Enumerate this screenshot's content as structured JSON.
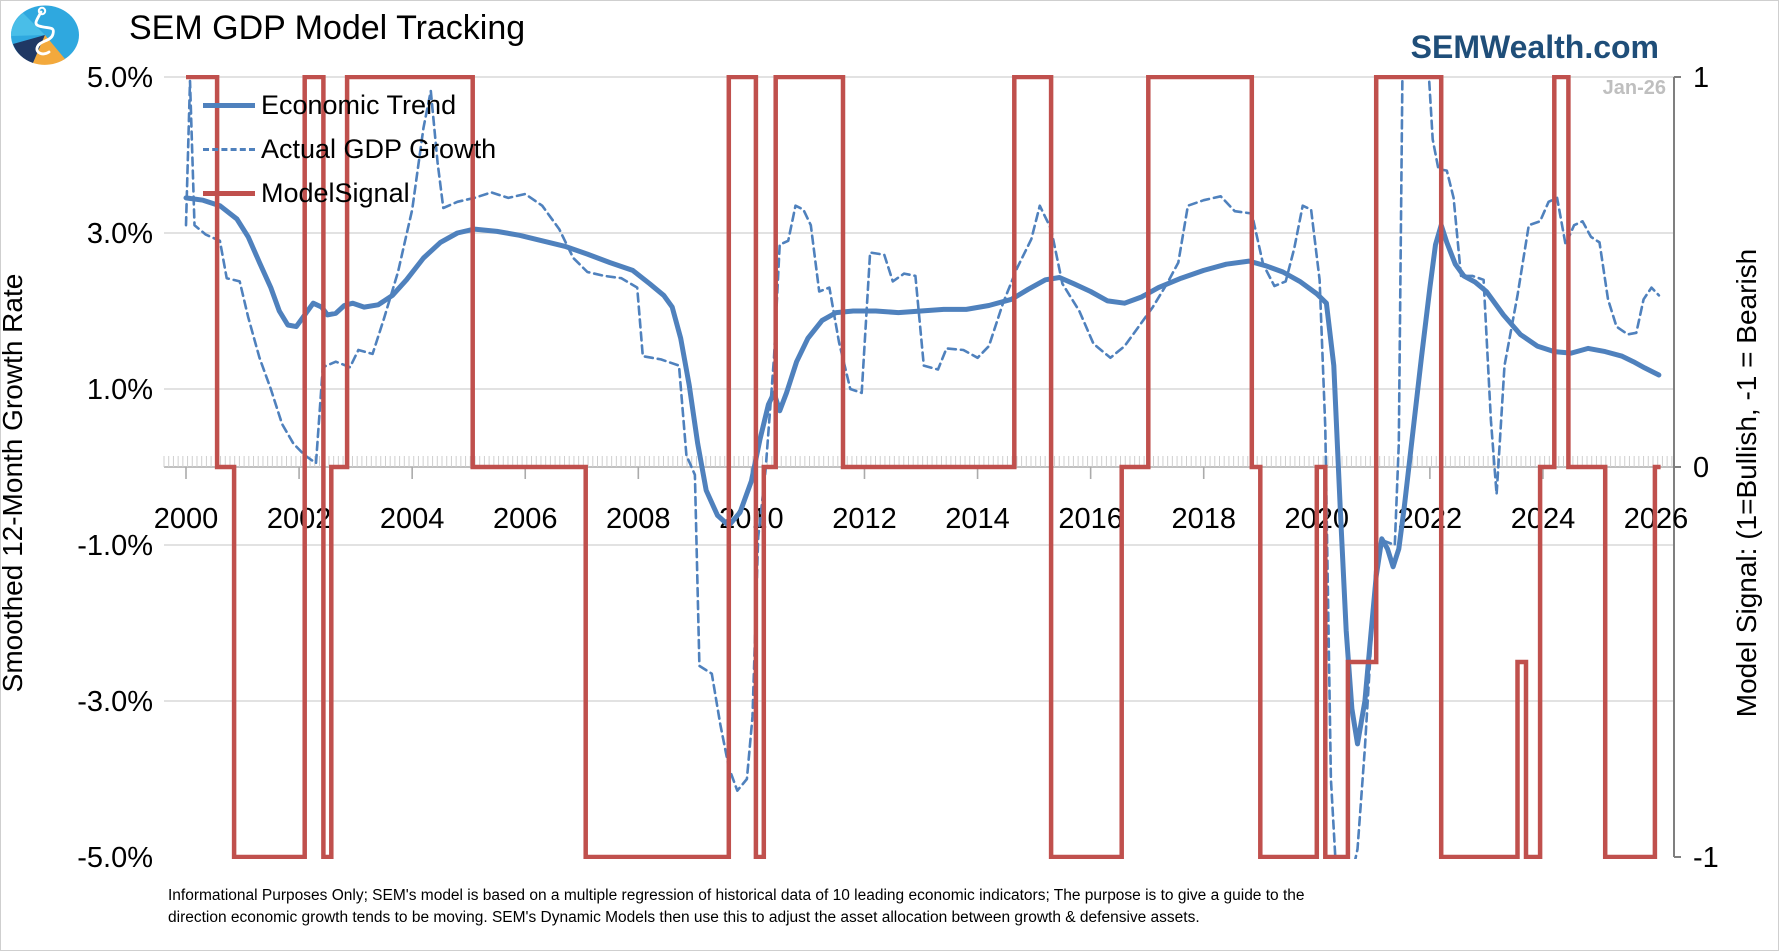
{
  "header": {
    "title": "SEM GDP Model Tracking",
    "website": "SEMWealth.com",
    "website_color": "#1F4E79",
    "logo_icon": "sem-pie-logo"
  },
  "watermark": "Jan-26",
  "footer": {
    "line1": "Informational Purposes Only; SEM's model is based on a multiple regression of historical data of 10 leading economic indicators; The purpose is to give a guide to the",
    "line2": "direction economic growth tends to be moving. SEM's Dynamic Models then use this to adjust the asset allocation between growth & defensive assets."
  },
  "chart_data": {
    "type": "line",
    "title": "SEM GDP Model Tracking",
    "grid_color": "#D9D9D9",
    "axis_color": "#ABABAB",
    "right_axis_color": "#7F7F7F",
    "legend_position": "top-left",
    "x_axis": {
      "start_year": 2000,
      "end_year": 2026.1,
      "label_years": [
        2000,
        2002,
        2004,
        2006,
        2008,
        2010,
        2012,
        2014,
        2016,
        2018,
        2020,
        2022,
        2024,
        2026
      ],
      "last_point_label": "Jan-26"
    },
    "y_left": {
      "title": "Smoothed 12-Month Growth Rate",
      "tick_labels": [
        "5.0%",
        "3.0%",
        "1.0%",
        "-1.0%",
        "-3.0%",
        "-5.0%"
      ],
      "tick_values": [
        5,
        3,
        1,
        -1,
        -3,
        -5
      ],
      "gridlines": [
        3,
        1,
        -1,
        -3
      ],
      "range": [
        -5,
        5
      ]
    },
    "y_right": {
      "title": "Model Signal: (1=Bullish, -1 = Bearish",
      "tick_labels": [
        "1",
        "0",
        "-1"
      ],
      "tick_values": [
        1,
        0,
        -1
      ],
      "range": [
        -1,
        1
      ]
    },
    "series": [
      {
        "name": "Economic Trend",
        "style": "solid",
        "color": "#4F81BD",
        "width": 5,
        "axis": "left",
        "points": [
          [
            2000.0,
            3.45
          ],
          [
            2000.3,
            3.42
          ],
          [
            2000.6,
            3.35
          ],
          [
            2000.9,
            3.18
          ],
          [
            2001.1,
            2.95
          ],
          [
            2001.3,
            2.62
          ],
          [
            2001.5,
            2.3
          ],
          [
            2001.65,
            2.0
          ],
          [
            2001.8,
            1.82
          ],
          [
            2001.95,
            1.8
          ],
          [
            2002.1,
            1.95
          ],
          [
            2002.25,
            2.1
          ],
          [
            2002.4,
            2.05
          ],
          [
            2002.5,
            1.95
          ],
          [
            2002.65,
            1.97
          ],
          [
            2002.8,
            2.07
          ],
          [
            2002.95,
            2.1
          ],
          [
            2003.15,
            2.05
          ],
          [
            2003.4,
            2.08
          ],
          [
            2003.65,
            2.2
          ],
          [
            2003.9,
            2.4
          ],
          [
            2004.2,
            2.68
          ],
          [
            2004.5,
            2.88
          ],
          [
            2004.8,
            3.0
          ],
          [
            2005.1,
            3.05
          ],
          [
            2005.5,
            3.02
          ],
          [
            2005.9,
            2.97
          ],
          [
            2006.3,
            2.9
          ],
          [
            2006.7,
            2.83
          ],
          [
            2007.1,
            2.73
          ],
          [
            2007.5,
            2.62
          ],
          [
            2007.9,
            2.52
          ],
          [
            2008.2,
            2.35
          ],
          [
            2008.45,
            2.2
          ],
          [
            2008.6,
            2.05
          ],
          [
            2008.75,
            1.65
          ],
          [
            2008.9,
            1.05
          ],
          [
            2009.05,
            0.3
          ],
          [
            2009.2,
            -0.3
          ],
          [
            2009.4,
            -0.62
          ],
          [
            2009.6,
            -0.75
          ],
          [
            2009.8,
            -0.58
          ],
          [
            2010.0,
            -0.18
          ],
          [
            2010.15,
            0.35
          ],
          [
            2010.3,
            0.8
          ],
          [
            2010.4,
            0.95
          ],
          [
            2010.5,
            0.72
          ],
          [
            2010.62,
            0.95
          ],
          [
            2010.8,
            1.35
          ],
          [
            2011.0,
            1.65
          ],
          [
            2011.25,
            1.88
          ],
          [
            2011.5,
            1.98
          ],
          [
            2011.8,
            2.0
          ],
          [
            2012.2,
            2.0
          ],
          [
            2012.6,
            1.98
          ],
          [
            2013.0,
            2.0
          ],
          [
            2013.4,
            2.02
          ],
          [
            2013.8,
            2.02
          ],
          [
            2014.2,
            2.07
          ],
          [
            2014.6,
            2.15
          ],
          [
            2014.9,
            2.28
          ],
          [
            2015.2,
            2.4
          ],
          [
            2015.45,
            2.43
          ],
          [
            2015.7,
            2.35
          ],
          [
            2016.0,
            2.25
          ],
          [
            2016.3,
            2.13
          ],
          [
            2016.6,
            2.1
          ],
          [
            2016.9,
            2.18
          ],
          [
            2017.2,
            2.3
          ],
          [
            2017.6,
            2.42
          ],
          [
            2018.0,
            2.52
          ],
          [
            2018.4,
            2.6
          ],
          [
            2018.8,
            2.64
          ],
          [
            2019.1,
            2.58
          ],
          [
            2019.4,
            2.5
          ],
          [
            2019.7,
            2.38
          ],
          [
            2020.0,
            2.22
          ],
          [
            2020.17,
            2.1
          ],
          [
            2020.3,
            1.3
          ],
          [
            2020.42,
            -0.6
          ],
          [
            2020.52,
            -2.1
          ],
          [
            2020.62,
            -3.1
          ],
          [
            2020.72,
            -3.55
          ],
          [
            2020.85,
            -3.0
          ],
          [
            2020.95,
            -2.2
          ],
          [
            2021.05,
            -1.4
          ],
          [
            2021.15,
            -0.92
          ],
          [
            2021.25,
            -1.05
          ],
          [
            2021.35,
            -1.28
          ],
          [
            2021.45,
            -1.05
          ],
          [
            2021.55,
            -0.5
          ],
          [
            2021.7,
            0.45
          ],
          [
            2021.85,
            1.4
          ],
          [
            2022.0,
            2.3
          ],
          [
            2022.1,
            2.85
          ],
          [
            2022.2,
            3.1
          ],
          [
            2022.3,
            2.88
          ],
          [
            2022.45,
            2.6
          ],
          [
            2022.6,
            2.45
          ],
          [
            2022.8,
            2.37
          ],
          [
            2023.0,
            2.25
          ],
          [
            2023.3,
            1.95
          ],
          [
            2023.6,
            1.7
          ],
          [
            2023.9,
            1.55
          ],
          [
            2024.2,
            1.48
          ],
          [
            2024.5,
            1.46
          ],
          [
            2024.8,
            1.52
          ],
          [
            2025.1,
            1.48
          ],
          [
            2025.4,
            1.42
          ],
          [
            2025.6,
            1.35
          ],
          [
            2025.8,
            1.27
          ],
          [
            2026.05,
            1.18
          ]
        ]
      },
      {
        "name": "Actual GDP Growth",
        "style": "dashed",
        "color": "#4F81BD",
        "width": 2.6,
        "axis": "left",
        "points": [
          [
            2000.0,
            3.1
          ],
          [
            2000.07,
            4.95
          ],
          [
            2000.15,
            3.1
          ],
          [
            2000.35,
            2.98
          ],
          [
            2000.6,
            2.9
          ],
          [
            2000.72,
            2.42
          ],
          [
            2000.95,
            2.38
          ],
          [
            2001.1,
            1.92
          ],
          [
            2001.3,
            1.4
          ],
          [
            2001.5,
            1.0
          ],
          [
            2001.7,
            0.55
          ],
          [
            2001.9,
            0.3
          ],
          [
            2002.1,
            0.15
          ],
          [
            2002.3,
            0.05
          ],
          [
            2002.42,
            1.28
          ],
          [
            2002.65,
            1.35
          ],
          [
            2002.9,
            1.28
          ],
          [
            2003.05,
            1.5
          ],
          [
            2003.3,
            1.45
          ],
          [
            2003.5,
            1.9
          ],
          [
            2003.75,
            2.5
          ],
          [
            2004.0,
            3.3
          ],
          [
            2004.2,
            4.35
          ],
          [
            2004.33,
            4.82
          ],
          [
            2004.45,
            3.9
          ],
          [
            2004.55,
            3.32
          ],
          [
            2004.8,
            3.4
          ],
          [
            2005.1,
            3.45
          ],
          [
            2005.4,
            3.52
          ],
          [
            2005.7,
            3.45
          ],
          [
            2006.0,
            3.5
          ],
          [
            2006.3,
            3.35
          ],
          [
            2006.6,
            3.05
          ],
          [
            2006.85,
            2.68
          ],
          [
            2007.1,
            2.5
          ],
          [
            2007.4,
            2.45
          ],
          [
            2007.7,
            2.42
          ],
          [
            2007.98,
            2.3
          ],
          [
            2008.08,
            1.42
          ],
          [
            2008.4,
            1.38
          ],
          [
            2008.72,
            1.3
          ],
          [
            2008.85,
            0.15
          ],
          [
            2009.0,
            -0.1
          ],
          [
            2009.08,
            -2.55
          ],
          [
            2009.3,
            -2.65
          ],
          [
            2009.45,
            -3.3
          ],
          [
            2009.6,
            -3.85
          ],
          [
            2009.75,
            -4.15
          ],
          [
            2009.92,
            -4.0
          ],
          [
            2010.02,
            -3.2
          ],
          [
            2010.12,
            -0.9
          ],
          [
            2010.25,
            -0.05
          ],
          [
            2010.4,
            1.4
          ],
          [
            2010.5,
            2.85
          ],
          [
            2010.65,
            2.9
          ],
          [
            2010.78,
            3.35
          ],
          [
            2010.92,
            3.3
          ],
          [
            2011.05,
            3.1
          ],
          [
            2011.2,
            2.25
          ],
          [
            2011.38,
            2.3
          ],
          [
            2011.55,
            1.6
          ],
          [
            2011.75,
            1.0
          ],
          [
            2011.95,
            0.95
          ],
          [
            2012.1,
            2.75
          ],
          [
            2012.35,
            2.72
          ],
          [
            2012.5,
            2.38
          ],
          [
            2012.7,
            2.48
          ],
          [
            2012.9,
            2.45
          ],
          [
            2013.05,
            1.3
          ],
          [
            2013.3,
            1.25
          ],
          [
            2013.45,
            1.52
          ],
          [
            2013.75,
            1.5
          ],
          [
            2014.0,
            1.4
          ],
          [
            2014.2,
            1.55
          ],
          [
            2014.45,
            2.1
          ],
          [
            2014.7,
            2.55
          ],
          [
            2014.95,
            2.92
          ],
          [
            2015.1,
            3.35
          ],
          [
            2015.3,
            3.05
          ],
          [
            2015.5,
            2.35
          ],
          [
            2015.8,
            2.0
          ],
          [
            2016.05,
            1.58
          ],
          [
            2016.35,
            1.4
          ],
          [
            2016.6,
            1.55
          ],
          [
            2016.85,
            1.8
          ],
          [
            2017.1,
            2.05
          ],
          [
            2017.35,
            2.35
          ],
          [
            2017.55,
            2.62
          ],
          [
            2017.72,
            3.35
          ],
          [
            2018.0,
            3.42
          ],
          [
            2018.3,
            3.47
          ],
          [
            2018.55,
            3.28
          ],
          [
            2018.85,
            3.25
          ],
          [
            2019.05,
            2.6
          ],
          [
            2019.25,
            2.32
          ],
          [
            2019.45,
            2.38
          ],
          [
            2019.6,
            2.8
          ],
          [
            2019.75,
            3.35
          ],
          [
            2019.9,
            3.3
          ],
          [
            2020.05,
            2.4
          ],
          [
            2020.15,
            0.5
          ],
          [
            2020.25,
            -4.0
          ],
          [
            2020.35,
            -5.3
          ],
          [
            2020.6,
            -5.3
          ],
          [
            2020.72,
            -4.9
          ],
          [
            2020.85,
            -3.6
          ],
          [
            2020.95,
            -2.4
          ],
          [
            2021.05,
            -1.1
          ],
          [
            2021.2,
            -0.95
          ],
          [
            2021.38,
            -1.0
          ],
          [
            2021.45,
            0.3
          ],
          [
            2021.52,
            5.4
          ],
          [
            2021.95,
            5.4
          ],
          [
            2022.05,
            4.2
          ],
          [
            2022.15,
            3.82
          ],
          [
            2022.3,
            3.8
          ],
          [
            2022.42,
            3.45
          ],
          [
            2022.55,
            2.45
          ],
          [
            2022.75,
            2.45
          ],
          [
            2022.95,
            2.4
          ],
          [
            2023.08,
            0.6
          ],
          [
            2023.18,
            -0.35
          ],
          [
            2023.32,
            1.3
          ],
          [
            2023.55,
            2.2
          ],
          [
            2023.75,
            3.1
          ],
          [
            2023.95,
            3.15
          ],
          [
            2024.1,
            3.4
          ],
          [
            2024.25,
            3.45
          ],
          [
            2024.4,
            2.85
          ],
          [
            2024.55,
            3.1
          ],
          [
            2024.7,
            3.15
          ],
          [
            2024.85,
            2.95
          ],
          [
            2025.0,
            2.88
          ],
          [
            2025.15,
            2.15
          ],
          [
            2025.3,
            1.8
          ],
          [
            2025.5,
            1.7
          ],
          [
            2025.65,
            1.72
          ],
          [
            2025.78,
            2.15
          ],
          [
            2025.92,
            2.3
          ],
          [
            2026.05,
            2.2
          ]
        ]
      },
      {
        "name": "ModelSignal",
        "style": "step",
        "color": "#C0504D",
        "width": 4.5,
        "axis": "right",
        "steps": [
          [
            2000.0,
            1
          ],
          [
            2000.55,
            0
          ],
          [
            2000.85,
            -1
          ],
          [
            2002.1,
            1
          ],
          [
            2002.43,
            -1
          ],
          [
            2002.57,
            0
          ],
          [
            2002.85,
            1
          ],
          [
            2005.07,
            0
          ],
          [
            2007.07,
            -1
          ],
          [
            2009.6,
            1
          ],
          [
            2010.08,
            -1
          ],
          [
            2010.22,
            0
          ],
          [
            2010.43,
            1
          ],
          [
            2011.62,
            0
          ],
          [
            2014.65,
            1
          ],
          [
            2015.3,
            -1
          ],
          [
            2016.55,
            0
          ],
          [
            2017.02,
            1
          ],
          [
            2018.85,
            0
          ],
          [
            2019.0,
            -1
          ],
          [
            2020.0,
            0
          ],
          [
            2020.15,
            -1
          ],
          [
            2020.55,
            -0.5
          ],
          [
            2021.05,
            1
          ],
          [
            2022.2,
            -1
          ],
          [
            2023.55,
            -0.5
          ],
          [
            2023.7,
            -1
          ],
          [
            2023.95,
            0
          ],
          [
            2024.2,
            1
          ],
          [
            2024.45,
            0
          ],
          [
            2025.1,
            -1
          ],
          [
            2025.98,
            0
          ]
        ],
        "end_year": 2026.08
      }
    ]
  }
}
